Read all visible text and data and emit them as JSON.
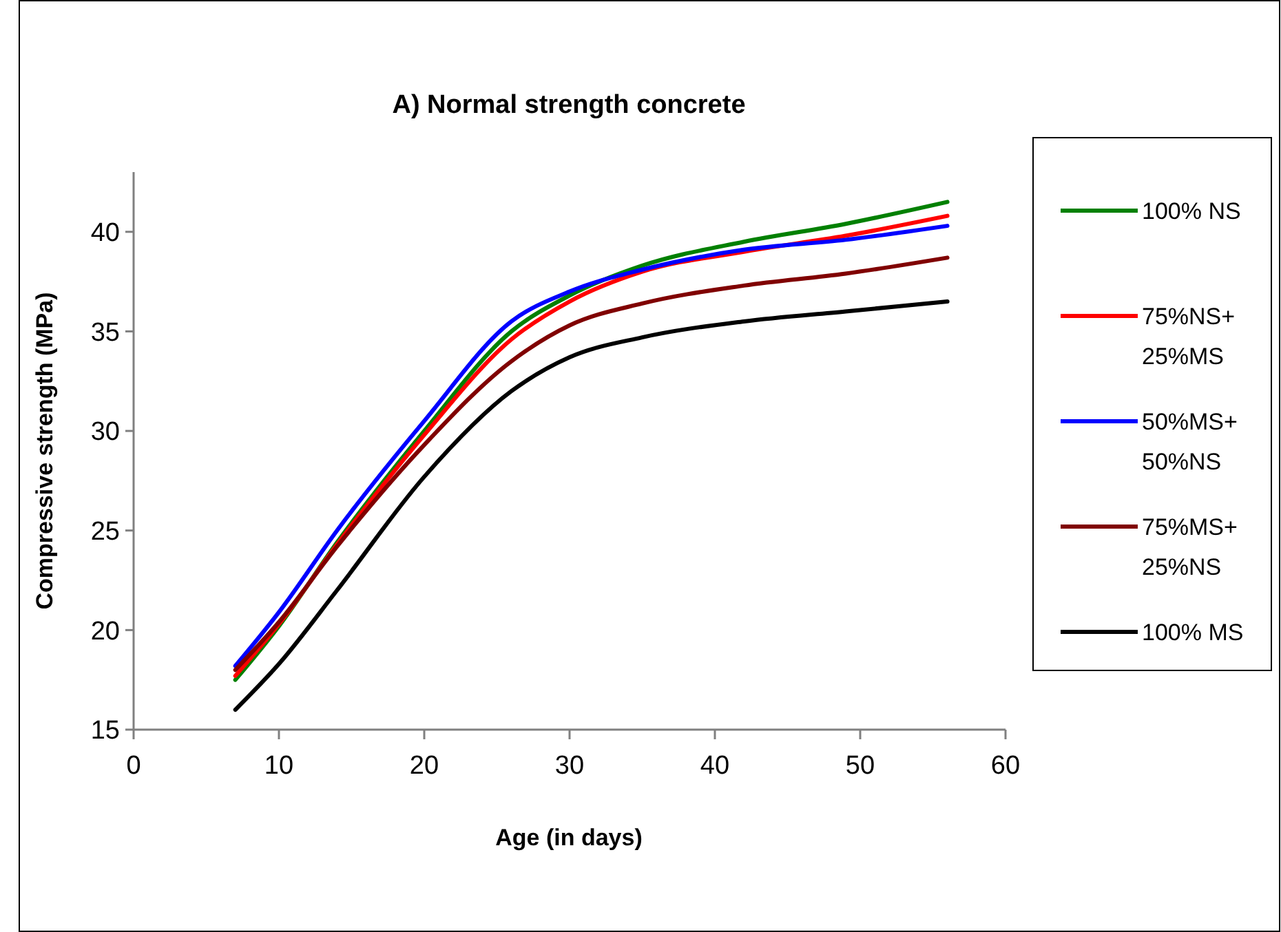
{
  "chart_data": {
    "type": "line",
    "title": "A) Normal strength concrete",
    "xlabel": "Age (in days)",
    "ylabel": "Compressive strength (MPa)",
    "xlim": [
      0,
      60
    ],
    "xticks": [
      0,
      10,
      20,
      30,
      40,
      50,
      60
    ],
    "ylim": [
      15,
      43
    ],
    "yticks": [
      15,
      20,
      25,
      30,
      35,
      40
    ],
    "grid": false,
    "legend": "right",
    "line_style": "solid",
    "marker": "none",
    "series": [
      {
        "name": "100% NS",
        "color": "#008000",
        "x": [
          7,
          10,
          14,
          20,
          26,
          30,
          35,
          42,
          49,
          56
        ],
        "values": [
          17.5,
          20.2,
          24.4,
          30,
          35,
          36.8,
          38.3,
          39.5,
          40.4,
          41.5
        ]
      },
      {
        "name": "75%NS+\n25%MS",
        "color": "#ff0000",
        "x": [
          7,
          10,
          14,
          20,
          26,
          30,
          35,
          42,
          49,
          56
        ],
        "values": [
          17.7,
          20.3,
          24.3,
          29.8,
          34.6,
          36.5,
          38,
          39,
          39.8,
          40.8
        ]
      },
      {
        "name": "50%MS+\n50%NS",
        "color": "#0000ff",
        "x": [
          7,
          10,
          14,
          20,
          26,
          30,
          35,
          42,
          49,
          56
        ],
        "values": [
          18.2,
          20.9,
          25,
          30.5,
          35.5,
          37,
          38.1,
          39.1,
          39.6,
          40.3
        ]
      },
      {
        "name": "75%MS+\n25%NS",
        "color": "#800000",
        "x": [
          7,
          10,
          14,
          20,
          26,
          30,
          35,
          42,
          49,
          56
        ],
        "values": [
          18,
          20.4,
          24.2,
          29.3,
          33.5,
          35.3,
          36.4,
          37.3,
          37.9,
          38.7
        ]
      },
      {
        "name": "100% MS",
        "color": "#000000",
        "x": [
          7,
          10,
          14,
          20,
          26,
          30,
          35,
          42,
          49,
          56
        ],
        "values": [
          16,
          18.3,
          22,
          27.7,
          32,
          33.7,
          34.7,
          35.5,
          36,
          36.5
        ]
      }
    ]
  }
}
